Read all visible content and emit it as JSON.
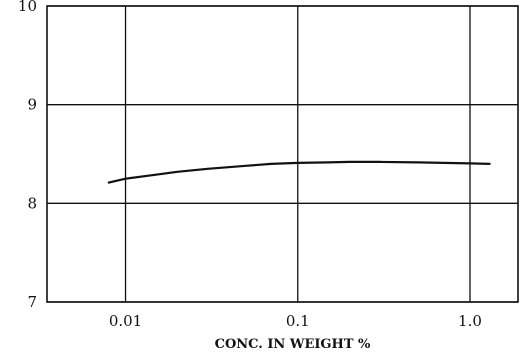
{
  "chart_data": {
    "type": "line",
    "xscale": "log",
    "xlabel": "CONC. IN WEIGHT %",
    "ylabel": "",
    "title": "",
    "xlim": [
      0.0035,
      1.9
    ],
    "ylim": [
      7,
      10
    ],
    "grid": true,
    "x_ticks": [
      0.01,
      0.1,
      1.0
    ],
    "x_tick_labels": [
      "0.01",
      "0.1",
      "1.0"
    ],
    "y_ticks": [
      7,
      8,
      9,
      10
    ],
    "y_tick_labels": [
      "7",
      "8",
      "9",
      "10"
    ],
    "series": [
      {
        "x": [
          0.008,
          0.01,
          0.015,
          0.02,
          0.03,
          0.05,
          0.07,
          0.1,
          0.15,
          0.2,
          0.3,
          0.5,
          0.7,
          1.0,
          1.3
        ],
        "y": [
          8.21,
          8.25,
          8.29,
          8.32,
          8.35,
          8.38,
          8.4,
          8.41,
          8.415,
          8.42,
          8.42,
          8.415,
          8.41,
          8.405,
          8.4
        ]
      }
    ]
  }
}
